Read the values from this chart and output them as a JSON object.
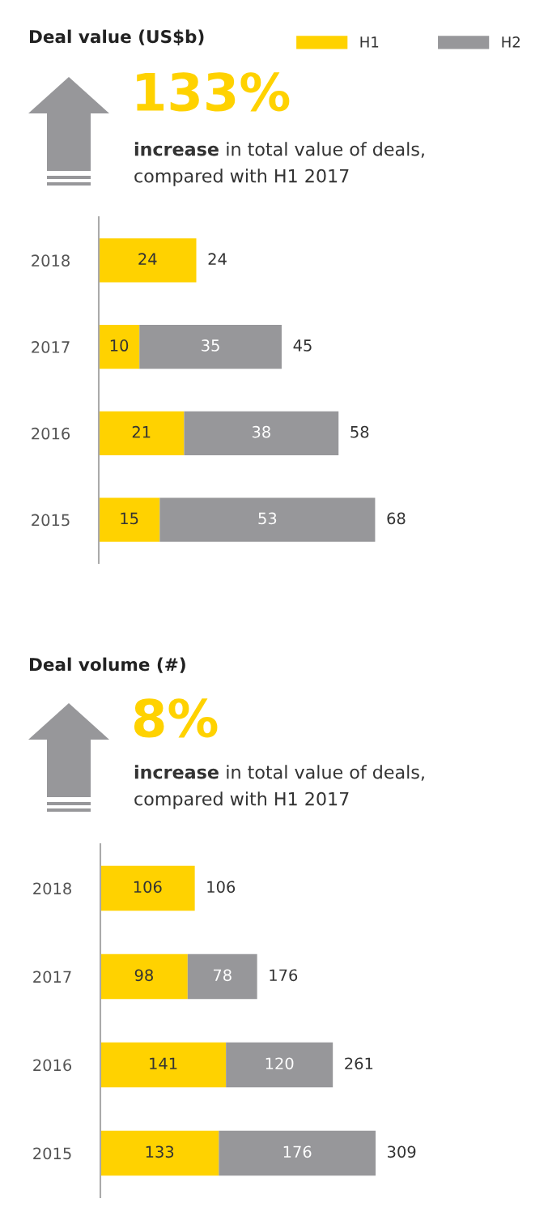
{
  "chart_data": [
    {
      "type": "bar",
      "orientation": "horizontal",
      "stacked": true,
      "title": "Deal value (US$b)",
      "subtitle": "increase in total value of deals,\ncompared with H1 2017",
      "annotations": [
        "133%"
      ],
      "categories": [
        "2018",
        "2017",
        "2016",
        "2015"
      ],
      "series": [
        {
          "name": "H1",
          "color": "#ffd200",
          "values": [
            24,
            10,
            21,
            15
          ]
        },
        {
          "name": "H2",
          "color": "#97979a",
          "values": [
            null,
            35,
            38,
            53
          ]
        }
      ],
      "data_labels": true,
      "totals": [
        "24",
        "45",
        "58",
        "68"
      ],
      "legend": "top right"
    },
    {
      "type": "bar",
      "orientation": "horizontal",
      "stacked": true,
      "title": "Deal volume (#)",
      "subtitle": "increase in total value of deals,\ncompared with H1 2017",
      "annotations": [
        "8%"
      ],
      "categories": [
        "2018",
        "2017",
        "2016",
        "2015"
      ],
      "series": [
        {
          "color": "#ffd200",
          "values": [
            106,
            98,
            141,
            133
          ]
        },
        {
          "color": "#97979a",
          "values": [
            null,
            78,
            120,
            176
          ]
        }
      ],
      "data_labels": true,
      "totals": [
        "106",
        "176",
        "261",
        "309"
      ]
    }
  ]
}
